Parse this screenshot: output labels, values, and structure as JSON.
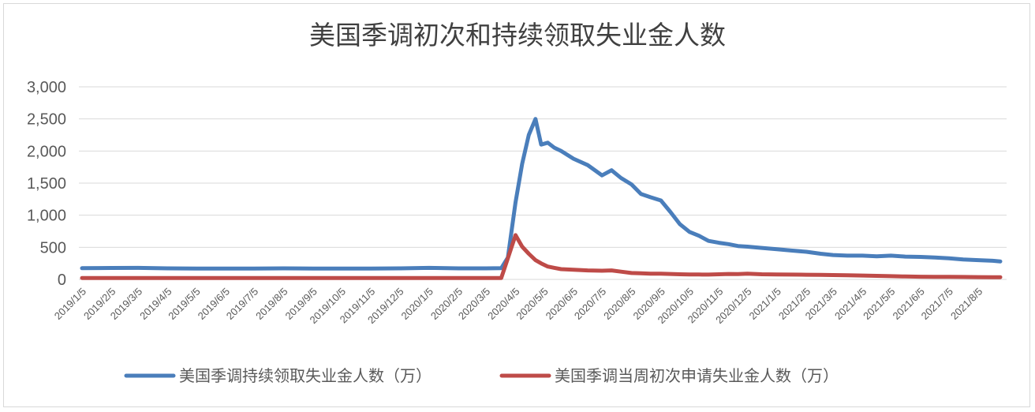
{
  "chart_data": {
    "type": "line",
    "title": "美国季调初次和持续领取失业金人数",
    "xlabel": "",
    "ylabel": "",
    "ylim": [
      0,
      3000
    ],
    "yticks": [
      "0",
      "500",
      "1,000",
      "1,500",
      "2,000",
      "2,500",
      "3,000"
    ],
    "ytick_values": [
      0,
      500,
      1000,
      1500,
      2000,
      2500,
      3000
    ],
    "grid": "horizontal",
    "legend_position": "bottom",
    "x": [
      "2019/1/5",
      "2019/2/5",
      "2019/3/5",
      "2019/4/5",
      "2019/5/5",
      "2019/6/5",
      "2019/7/5",
      "2019/8/5",
      "2019/9/5",
      "2019/10/5",
      "2019/11/5",
      "2019/12/5",
      "2020/1/5",
      "2020/2/5",
      "2020/3/5",
      "2020/3/21",
      "2020/3/28",
      "2020/4/5",
      "2020/4/12",
      "2020/4/19",
      "2020/4/26",
      "2020/5/2",
      "2020/5/9",
      "2020/5/16",
      "2020/5/23",
      "2020/6/5",
      "2020/6/20",
      "2020/7/5",
      "2020/7/15",
      "2020/7/25",
      "2020/8/5",
      "2020/8/15",
      "2020/8/25",
      "2020/9/5",
      "2020/9/15",
      "2020/9/25",
      "2020/10/5",
      "2020/10/15",
      "2020/10/25",
      "2020/11/5",
      "2020/11/15",
      "2020/11/25",
      "2020/12/5",
      "2020/12/20",
      "2021/1/5",
      "2021/1/20",
      "2021/2/5",
      "2021/2/20",
      "2021/3/5",
      "2021/3/20",
      "2021/4/5",
      "2021/4/20",
      "2021/5/5",
      "2021/5/20",
      "2021/6/5",
      "2021/6/20",
      "2021/7/5",
      "2021/7/20",
      "2021/8/5",
      "2021/8/20",
      "2021/8/28"
    ],
    "xtick_labels": [
      "2019/1/5",
      "2019/2/5",
      "2019/3/5",
      "2019/4/5",
      "2019/5/5",
      "2019/6/5",
      "2019/7/5",
      "2019/8/5",
      "2019/9/5",
      "2019/10/5",
      "2019/11/5",
      "2019/12/5",
      "2020/1/5",
      "2020/2/5",
      "2020/3/5",
      "2020/4/5",
      "2020/5/5",
      "2020/6/5",
      "2020/7/5",
      "2020/8/5",
      "2020/9/5",
      "2020/10/5",
      "2020/11/5",
      "2020/12/5",
      "2021/1/5",
      "2021/2/5",
      "2021/3/5",
      "2021/4/5",
      "2021/5/5",
      "2021/6/5",
      "2021/7/5",
      "2021/8/5"
    ],
    "series": [
      {
        "name": "美国季调持续领取失业金人数（万）",
        "color": "#4a7ebb",
        "values": [
          175,
          178,
          180,
          172,
          168,
          170,
          170,
          172,
          170,
          170,
          168,
          172,
          180,
          172,
          172,
          175,
          340,
          1200,
          1800,
          2250,
          2500,
          2100,
          2130,
          2050,
          2000,
          1880,
          1780,
          1620,
          1700,
          1580,
          1480,
          1330,
          1280,
          1230,
          1050,
          860,
          740,
          680,
          600,
          570,
          550,
          520,
          510,
          490,
          470,
          450,
          430,
          400,
          380,
          370,
          370,
          360,
          370,
          355,
          350,
          340,
          330,
          310,
          300,
          290,
          280
        ]
      },
      {
        "name": "美国季调当周初次申请失业金人数（万）",
        "color": "#be4b48",
        "values": [
          22,
          22,
          22,
          22,
          22,
          22,
          22,
          22,
          22,
          22,
          22,
          22,
          22,
          22,
          22,
          22,
          330,
          690,
          510,
          400,
          300,
          250,
          200,
          180,
          160,
          150,
          140,
          135,
          140,
          120,
          100,
          95,
          90,
          88,
          85,
          80,
          78,
          76,
          75,
          80,
          85,
          82,
          90,
          80,
          78,
          75,
          72,
          70,
          68,
          65,
          60,
          55,
          50,
          45,
          42,
          40,
          40,
          38,
          36,
          35,
          34
        ]
      }
    ]
  }
}
